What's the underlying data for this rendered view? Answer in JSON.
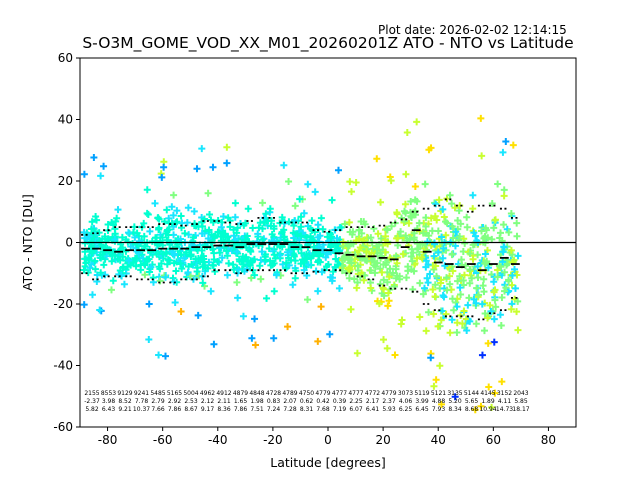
{
  "plot_date": "Plot date: 2026-02-02 12:14:15",
  "chart_data": {
    "type": "scatter",
    "title": "S-O3M_GOME_VOD_XX_M01_20260201Z ATO - NTO vs Latitude",
    "xlabel": "Latitude [degrees]",
    "ylabel": "ATO - NTO [DU]",
    "xlim": [
      -90,
      90
    ],
    "ylim": [
      -60,
      60
    ],
    "xticks": [
      -80,
      -60,
      -40,
      -20,
      0,
      20,
      40,
      60,
      80
    ],
    "yticks": [
      -60,
      -40,
      -20,
      0,
      20,
      40,
      60
    ],
    "grid": false,
    "zero_line": 0,
    "scatter_colors": [
      "#00ffd0",
      "#19e6ff",
      "#00a0ff",
      "#0030ff",
      "#0000cc",
      "#80ff80",
      "#c8ff30",
      "#ffe000",
      "#ffb000",
      "#ff9000"
    ],
    "binned_stats": {
      "lat": [
        -88,
        -84,
        -80,
        -76,
        -72,
        -68,
        -64,
        -60,
        -56,
        -52,
        -48,
        -44,
        -40,
        -36,
        -32,
        -28,
        -24,
        -20,
        -16,
        -12,
        -8,
        -4,
        0,
        4,
        8,
        12,
        16,
        20,
        24,
        28,
        32,
        36,
        40,
        44,
        48,
        52,
        56,
        60,
        64,
        68
      ],
      "mean": [
        -2,
        -2,
        -2.5,
        -3,
        -2.5,
        -2.5,
        -2.5,
        -2,
        -2,
        -2,
        -1.5,
        -1.5,
        -1,
        -1,
        -1.5,
        -0.5,
        -0.5,
        -0.5,
        -0.5,
        -1.5,
        -1.5,
        -2.5,
        -2.5,
        -3.5,
        -4,
        -4.5,
        -4.5,
        -5,
        -5.5,
        -1.5,
        4,
        -3,
        -6.5,
        -7,
        -8,
        -7,
        -9,
        -7,
        -5,
        -7
      ],
      "std_upper": [
        2.5,
        3,
        4,
        5,
        5,
        5,
        5,
        6,
        6,
        5.5,
        6,
        7,
        7,
        6.5,
        6,
        7,
        8,
        8,
        6.5,
        6.5,
        6.5,
        4,
        3.5,
        4,
        5,
        5,
        5,
        5.5,
        6.5,
        7.5,
        10,
        11,
        12,
        14,
        12,
        10,
        12,
        12,
        11,
        8
      ],
      "std_lower": [
        -10,
        -12,
        -11,
        -11,
        -11,
        -12,
        -12,
        -13,
        -13,
        -12,
        -12,
        -11,
        -9,
        -9,
        -10,
        -9,
        -9,
        -9,
        -9,
        -10,
        -10,
        -9.5,
        -9,
        -9,
        -10,
        -11,
        -12,
        -14,
        -15,
        -15,
        -16,
        -20,
        -22,
        -24,
        -24,
        -24,
        -25,
        -23,
        -22,
        -18
      ]
    },
    "stats_rows_visible": [
      [
        "2155",
        "-2.37",
        "5.82"
      ],
      [
        "8553",
        "3.98",
        "6.43"
      ],
      [
        "9129",
        "8.52",
        "9.21"
      ],
      [
        "9241",
        "7.78",
        "10.37"
      ],
      [
        "5485",
        "2.79",
        "7.66"
      ],
      [
        "5165",
        "2.92",
        "7.86"
      ],
      [
        "5004",
        "2.53",
        "8.67"
      ],
      [
        "4962",
        "2.12",
        "9.17"
      ],
      [
        "4912",
        "2.11",
        "8.36"
      ],
      [
        "4879",
        "1.65",
        "7.86"
      ],
      [
        "4848",
        "1.98",
        "7.51"
      ],
      [
        "4728",
        "0.83",
        "7.24"
      ],
      [
        "4789",
        "2.07",
        "7.28"
      ],
      [
        "4750",
        "0.62",
        "8.31"
      ],
      [
        "4779",
        "0.42",
        "7.68"
      ],
      [
        "4777",
        "0.39",
        "7.19"
      ],
      [
        "4777",
        "2.25",
        "6.07"
      ],
      [
        "4772",
        "2.17",
        "6.41"
      ],
      [
        "4779",
        "2.37",
        "5.93"
      ],
      [
        "3073",
        "4.06",
        "6.25"
      ],
      [
        "5119",
        "3.99",
        "6.45"
      ],
      [
        "5121",
        "4.88",
        "7.93"
      ],
      [
        "3135",
        "5.20",
        "8.34"
      ],
      [
        "5144",
        "5.65",
        "8.68"
      ],
      [
        "4145",
        "1.89",
        "10.94"
      ],
      [
        "3152",
        "4.11",
        "14.73"
      ],
      [
        "2043",
        "5.85",
        "18.17"
      ]
    ]
  }
}
